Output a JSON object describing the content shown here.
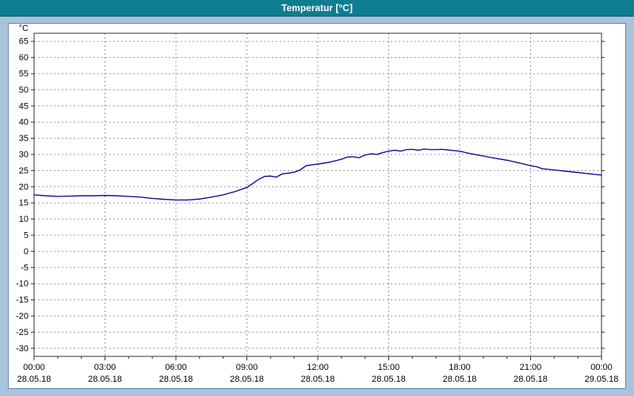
{
  "titlebar": {
    "title": "Temperatur [°C]"
  },
  "colors": {
    "window_bg": "#a9c3dd",
    "titlebar_bg": "#0e7d90",
    "titlebar_text": "#ffffff",
    "panel_bg": "#ffffff",
    "panel_border": "#6b86a0",
    "grid": "#9099a8",
    "axis": "#303030",
    "line": "#00008b",
    "tick_text": "#000000"
  },
  "chart_data": {
    "type": "line",
    "title": "Temperatur [°C]",
    "ylabel": "°C",
    "xlabel": "",
    "ylim": [
      -32.5,
      67.5
    ],
    "xlim": [
      0,
      24
    ],
    "grid": "dashed",
    "legend": "none",
    "y_ticks": [
      65,
      60,
      55,
      50,
      45,
      40,
      35,
      30,
      25,
      20,
      15,
      10,
      5,
      0,
      -5,
      -10,
      -15,
      -20,
      -25,
      -30
    ],
    "x_ticks": [
      {
        "hour": 0,
        "time": "00:00",
        "date": "28.05.18"
      },
      {
        "hour": 3,
        "time": "03:00",
        "date": "28.05.18"
      },
      {
        "hour": 6,
        "time": "06:00",
        "date": "28.05.18"
      },
      {
        "hour": 9,
        "time": "09:00",
        "date": "28.05.18"
      },
      {
        "hour": 12,
        "time": "12:00",
        "date": "28.05.18"
      },
      {
        "hour": 15,
        "time": "15:00",
        "date": "28.05.18"
      },
      {
        "hour": 18,
        "time": "18:00",
        "date": "28.05.18"
      },
      {
        "hour": 21,
        "time": "21:00",
        "date": "28.05.18"
      },
      {
        "hour": 24,
        "time": "00:00",
        "date": "29.05.18"
      }
    ],
    "series": [
      {
        "name": "Temperatur",
        "color": "#00008b",
        "points": [
          [
            0,
            17.5
          ],
          [
            0.5,
            17.2
          ],
          [
            1,
            17.0
          ],
          [
            1.5,
            17.1
          ],
          [
            2,
            17.2
          ],
          [
            2.5,
            17.2
          ],
          [
            3,
            17.3
          ],
          [
            3.5,
            17.2
          ],
          [
            4,
            17.0
          ],
          [
            4.5,
            16.8
          ],
          [
            5,
            16.4
          ],
          [
            5.5,
            16.1
          ],
          [
            6,
            15.9
          ],
          [
            6.5,
            15.9
          ],
          [
            7,
            16.2
          ],
          [
            7.5,
            16.8
          ],
          [
            8,
            17.5
          ],
          [
            8.5,
            18.5
          ],
          [
            9,
            19.8
          ],
          [
            9.25,
            21.0
          ],
          [
            9.5,
            22.3
          ],
          [
            9.75,
            23.2
          ],
          [
            10,
            23.3
          ],
          [
            10.25,
            23.0
          ],
          [
            10.5,
            24.0
          ],
          [
            10.75,
            24.2
          ],
          [
            11,
            24.5
          ],
          [
            11.25,
            25.2
          ],
          [
            11.5,
            26.5
          ],
          [
            11.75,
            26.8
          ],
          [
            12,
            27.0
          ],
          [
            12.5,
            27.6
          ],
          [
            13,
            28.5
          ],
          [
            13.25,
            29.2
          ],
          [
            13.5,
            29.3
          ],
          [
            13.75,
            29.0
          ],
          [
            14,
            29.8
          ],
          [
            14.25,
            30.2
          ],
          [
            14.5,
            30.0
          ],
          [
            14.75,
            30.6
          ],
          [
            15,
            31.0
          ],
          [
            15.25,
            31.3
          ],
          [
            15.5,
            31.0
          ],
          [
            15.75,
            31.5
          ],
          [
            16,
            31.6
          ],
          [
            16.25,
            31.3
          ],
          [
            16.5,
            31.7
          ],
          [
            16.75,
            31.5
          ],
          [
            17,
            31.5
          ],
          [
            17.25,
            31.6
          ],
          [
            17.5,
            31.4
          ],
          [
            17.75,
            31.2
          ],
          [
            18,
            31.0
          ],
          [
            18.25,
            30.6
          ],
          [
            18.5,
            30.2
          ],
          [
            19,
            29.5
          ],
          [
            19.5,
            28.8
          ],
          [
            20,
            28.2
          ],
          [
            20.5,
            27.4
          ],
          [
            21,
            26.5
          ],
          [
            21.25,
            26.2
          ],
          [
            21.5,
            25.6
          ],
          [
            22,
            25.2
          ],
          [
            22.5,
            24.8
          ],
          [
            23,
            24.4
          ],
          [
            23.5,
            24.0
          ],
          [
            24,
            23.6
          ]
        ]
      }
    ]
  }
}
